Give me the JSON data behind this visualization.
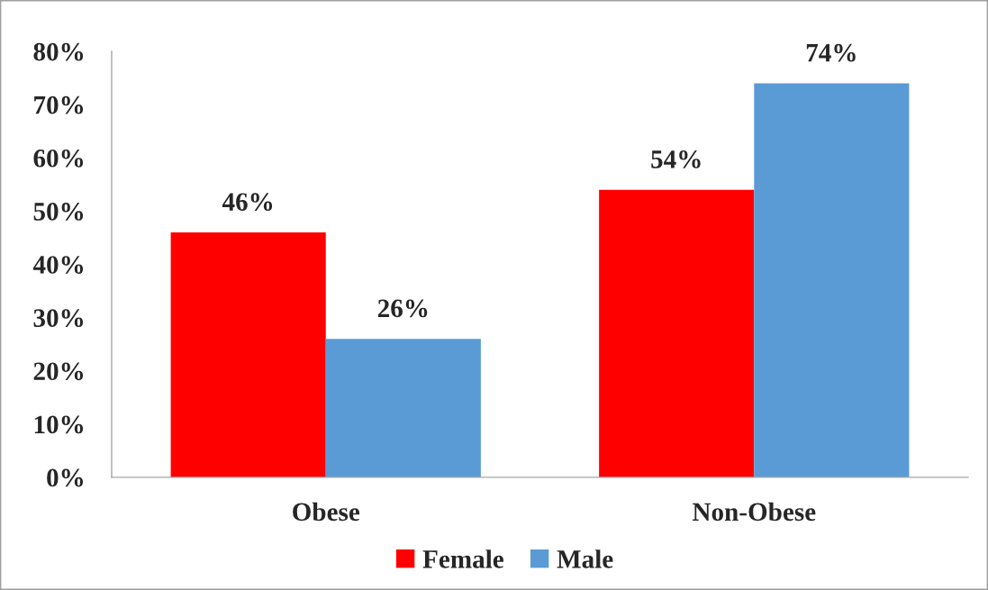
{
  "chart_data": {
    "type": "bar",
    "categories": [
      "Obese",
      "Non-Obese"
    ],
    "series": [
      {
        "name": "Female",
        "color": "#ff0000",
        "values": [
          46,
          54
        ],
        "value_labels": [
          "46%",
          "54%"
        ]
      },
      {
        "name": "Male",
        "color": "#5b9bd5",
        "values": [
          26,
          74
        ],
        "value_labels": [
          "26%",
          "74%"
        ]
      }
    ],
    "ylim": [
      0,
      80
    ],
    "yticks": [
      {
        "value": 0,
        "label": "0%"
      },
      {
        "value": 10,
        "label": "10%"
      },
      {
        "value": 20,
        "label": "20%"
      },
      {
        "value": 30,
        "label": "30%"
      },
      {
        "value": 40,
        "label": "40%"
      },
      {
        "value": 50,
        "label": "50%"
      },
      {
        "value": 60,
        "label": "60%"
      },
      {
        "value": 70,
        "label": "70%"
      },
      {
        "value": 80,
        "label": "80%"
      }
    ],
    "legend": "bottom"
  }
}
